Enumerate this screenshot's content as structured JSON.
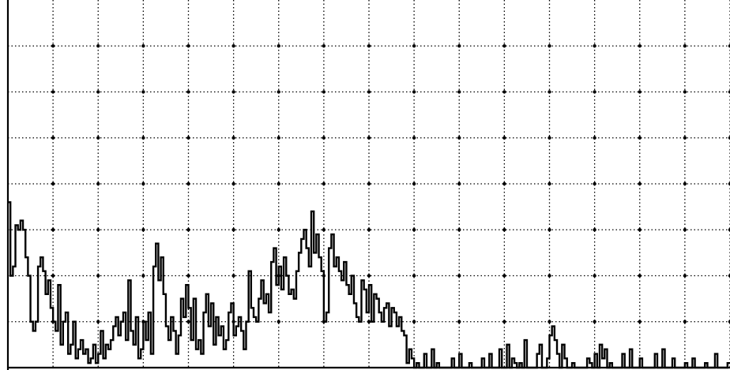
{
  "chart_data": {
    "type": "line",
    "title": "",
    "xlabel": "",
    "ylabel": "",
    "grid": true,
    "grid_style": "dotted",
    "line_color": "#000000",
    "background_color": "#ffffff",
    "xlim": [
      0,
      16
    ],
    "ylim": [
      0,
      8
    ],
    "series": [
      {
        "values": [
          3.6,
          2.0,
          2.2,
          3.1,
          3.0,
          3.2,
          3.0,
          2.4,
          2.0,
          1.0,
          0.8,
          1.0,
          2.2,
          2.4,
          2.1,
          1.6,
          1.9,
          1.3,
          1.0,
          0.8,
          1.8,
          0.5,
          1.0,
          1.2,
          0.3,
          0.5,
          1.0,
          0.2,
          0.4,
          0.6,
          0.3,
          0.4,
          0.1,
          0.2,
          0.5,
          0.1,
          0.3,
          0.8,
          0.2,
          0.5,
          0.4,
          0.6,
          0.9,
          1.1,
          0.7,
          1.0,
          1.2,
          0.6,
          1.9,
          0.8,
          0.5,
          1.1,
          0.2,
          0.4,
          1.0,
          0.6,
          1.2,
          0.3,
          2.2,
          2.7,
          1.9,
          2.4,
          1.6,
          0.9,
          0.6,
          1.1,
          0.8,
          0.3,
          0.7,
          1.5,
          1.1,
          1.8,
          1.3,
          0.6,
          1.5,
          0.4,
          0.6,
          0.3,
          1.2,
          1.6,
          0.9,
          1.4,
          0.5,
          1.1,
          0.7,
          0.9,
          0.4,
          0.6,
          1.2,
          1.4,
          0.7,
          0.9,
          1.1,
          0.8,
          0.4,
          1.0,
          2.1,
          1.3,
          1.1,
          1.0,
          1.5,
          1.9,
          1.4,
          1.6,
          1.2,
          2.3,
          2.6,
          1.8,
          2.2,
          1.7,
          2.4,
          2.0,
          1.6,
          1.7,
          1.5,
          2.1,
          2.5,
          2.8,
          3.0,
          2.6,
          2.2,
          3.4,
          2.5,
          2.9,
          2.4,
          2.1,
          1.0,
          1.2,
          2.6,
          2.9,
          2.2,
          2.4,
          2.1,
          1.9,
          2.3,
          1.8,
          1.6,
          2.0,
          1.4,
          1.1,
          1.0,
          1.9,
          1.7,
          1.2,
          1.8,
          1.0,
          1.6,
          1.5,
          1.2,
          1.0,
          1.3,
          1.4,
          0.9,
          1.3,
          1.2,
          0.9,
          1.1,
          0.8,
          0.7,
          0.1,
          0.4,
          0.2,
          0.0,
          0.1,
          0.0,
          0.0,
          0.3,
          0.0,
          0.0,
          0.4,
          0.0,
          0.1,
          0.0,
          0.0,
          0.0,
          0.0,
          0.0,
          0.2,
          0.0,
          0.0,
          0.3,
          0.0,
          0.0,
          0.0,
          0.1,
          0.0,
          0.0,
          0.0,
          0.0,
          0.2,
          0.0,
          0.0,
          0.3,
          0.0,
          0.0,
          0.0,
          0.4,
          0.0,
          0.0,
          0.5,
          0.0,
          0.2,
          0.1,
          0.0,
          0.1,
          0.0,
          0.6,
          0.0,
          0.0,
          0.0,
          0.0,
          0.3,
          0.5,
          0.0,
          0.0,
          0.2,
          0.7,
          0.9,
          0.6,
          0.3,
          0.0,
          0.5,
          0.2,
          0.0,
          0.0,
          0.1,
          0.0,
          0.0,
          0.0,
          0.0,
          0.0,
          0.2,
          0.1,
          0.0,
          0.3,
          0.0,
          0.5,
          0.2,
          0.4,
          0.0,
          0.1,
          0.0,
          0.0,
          0.0,
          0.0,
          0.3,
          0.0,
          0.0,
          0.4,
          0.0,
          0.0,
          0.0,
          0.2,
          0.0,
          0.0,
          0.0,
          0.0,
          0.0,
          0.3,
          0.0,
          0.0,
          0.4,
          0.0,
          0.0,
          0.0,
          0.2,
          0.0,
          0.0,
          0.0,
          0.0,
          0.1,
          0.0,
          0.0,
          0.2,
          0.0,
          0.0,
          0.0,
          0.0,
          0.1,
          0.0,
          0.0,
          0.0,
          0.3,
          0.0,
          0.0,
          0.0,
          0.0,
          0.1
        ]
      }
    ]
  }
}
